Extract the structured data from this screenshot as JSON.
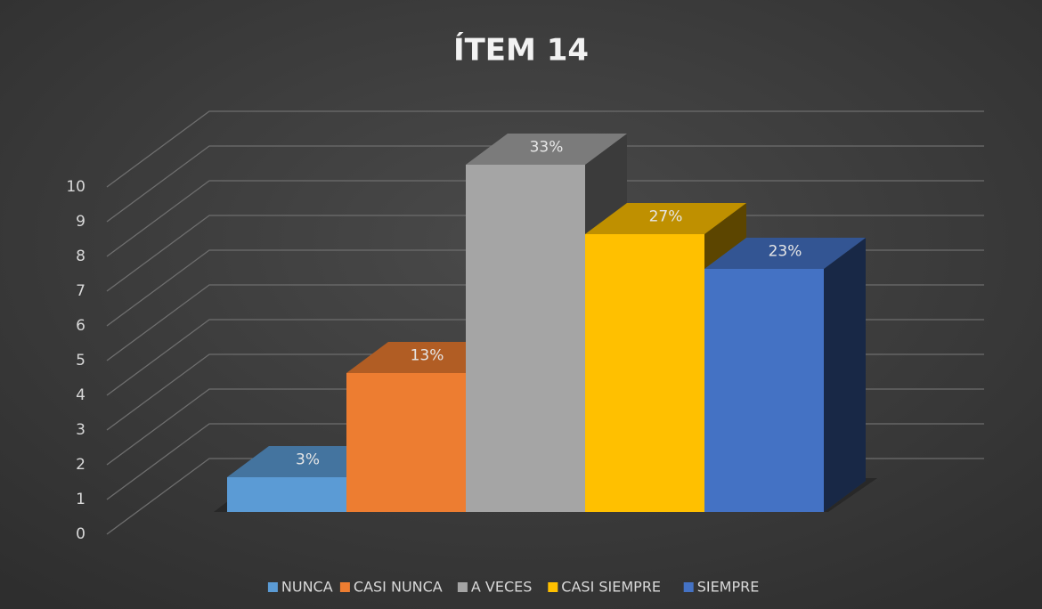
{
  "chart_data": {
    "type": "bar",
    "title": "ÍTEM 14",
    "categories": [
      "NUNCA",
      "CASI NUNCA",
      "A VECES",
      "CASI SIEMPRE",
      "SIEMPRE"
    ],
    "values": [
      1,
      4,
      10,
      8,
      7
    ],
    "value_labels": [
      "3%",
      "13%",
      "33%",
      "27%",
      "23%"
    ],
    "colors": [
      "#5b9bd5",
      "#ed7d31",
      "#a5a5a5",
      "#ffc000",
      "#4472c4"
    ],
    "ylim": [
      0,
      10
    ],
    "yticks": [
      0,
      1,
      2,
      3,
      4,
      5,
      6,
      7,
      8,
      9,
      10
    ],
    "grid": true,
    "legend": "bottom"
  }
}
